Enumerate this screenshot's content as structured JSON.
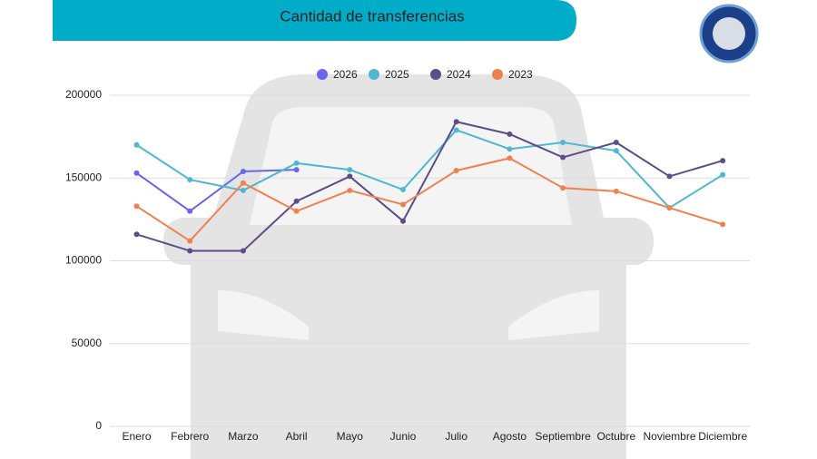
{
  "chart_data": {
    "type": "line",
    "title": "Cantidad de transferencias",
    "categories": [
      "Enero",
      "Febrero",
      "Marzo",
      "Abril",
      "Mayo",
      "Junio",
      "Julio",
      "Agosto",
      "Septiembre",
      "Octubre",
      "Noviembre",
      "Diciembre"
    ],
    "series": [
      {
        "name": "2026",
        "color": "#6a64ee",
        "values": [
          153000,
          130000,
          154000,
          155000,
          null,
          null,
          null,
          null,
          null,
          null,
          null,
          null
        ]
      },
      {
        "name": "2025",
        "color": "#4db8d0",
        "values": [
          170000,
          149000,
          142500,
          159000,
          155000,
          143000,
          179000,
          167500,
          171500,
          166500,
          132000,
          152000
        ]
      },
      {
        "name": "2024",
        "color": "#5b4d88",
        "values": [
          116000,
          106000,
          106000,
          136000,
          151000,
          124000,
          184000,
          176500,
          162500,
          171500,
          151000,
          160500
        ]
      },
      {
        "name": "2023",
        "color": "#f08050",
        "values": [
          133000,
          112000,
          147000,
          130000,
          142500,
          134000,
          154500,
          162000,
          144000,
          142000,
          132000,
          122000
        ]
      }
    ],
    "ylim": [
      0,
      200000
    ],
    "yticks": [
      0,
      50000,
      100000,
      150000,
      200000
    ],
    "grid": true,
    "legend": "top"
  }
}
